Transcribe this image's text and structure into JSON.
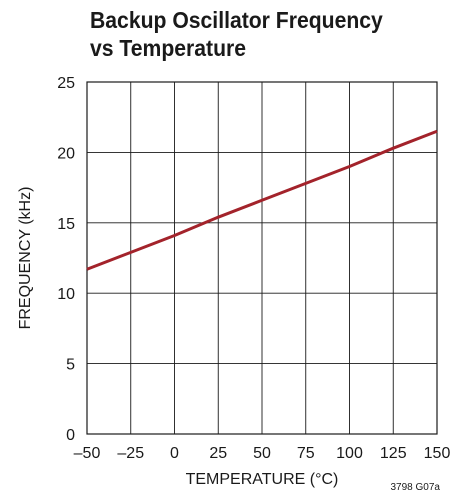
{
  "chart_data": {
    "type": "line",
    "title_lines": [
      "Backup Oscillator Frequency",
      "vs Temperature"
    ],
    "xlabel": "TEMPERATURE (°C)",
    "ylabel": "FREQUENCY (kHz)",
    "xlim": [
      -50,
      150
    ],
    "ylim": [
      0,
      25
    ],
    "xticks": [
      -50,
      -25,
      0,
      25,
      50,
      75,
      100,
      125,
      150
    ],
    "xtick_labels": [
      "–50",
      "–25",
      "0",
      "25",
      "50",
      "75",
      "100",
      "125",
      "150"
    ],
    "yticks": [
      0,
      5,
      10,
      15,
      20,
      25
    ],
    "ytick_labels": [
      "0",
      "5",
      "10",
      "15",
      "20",
      "25"
    ],
    "grid": true,
    "series": [
      {
        "color": "#a3232b",
        "x": [
          -50,
          -25,
          0,
          25,
          50,
          75,
          100,
          125,
          150
        ],
        "y": [
          11.7,
          12.9,
          14.1,
          15.4,
          16.6,
          17.8,
          19.0,
          20.3,
          21.5
        ]
      }
    ],
    "footnote": "3798 G07a"
  },
  "colors": {
    "line": "#a3232b",
    "grid": "#1a1a1a",
    "text": "#1a1a1a"
  }
}
